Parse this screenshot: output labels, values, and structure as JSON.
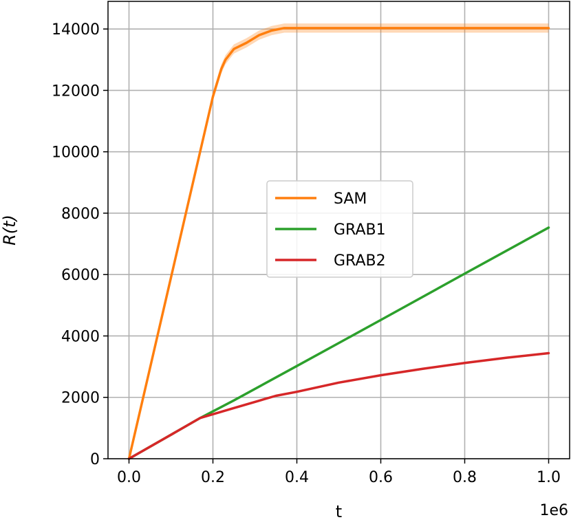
{
  "chart_data": {
    "type": "line",
    "xlabel": "t",
    "ylabel": "R(t)",
    "x_offset_label": "1e6",
    "xlim": [
      -0.05,
      1.05
    ],
    "ylim": [
      0,
      14900
    ],
    "x_ticks": [
      0.0,
      0.2,
      0.4,
      0.6,
      0.8,
      1.0
    ],
    "x_tick_labels": [
      "0.0",
      "0.2",
      "0.4",
      "0.6",
      "0.8",
      "1.0"
    ],
    "y_ticks": [
      0,
      2000,
      4000,
      6000,
      8000,
      10000,
      12000,
      14000
    ],
    "y_tick_labels": [
      "0",
      "2000",
      "4000",
      "6000",
      "8000",
      "10000",
      "12000",
      "14000"
    ],
    "grid": true,
    "legend_position": "center-right",
    "series": [
      {
        "name": "SAM",
        "color": "#ff7f0e",
        "band_half_width": 150,
        "x": [
          0,
          0.05,
          0.1,
          0.15,
          0.2,
          0.22,
          0.23,
          0.25,
          0.28,
          0.31,
          0.34,
          0.37,
          0.4,
          0.5,
          0.6,
          0.7,
          0.8,
          0.9,
          1.0
        ],
        "y": [
          0,
          2950,
          5900,
          8850,
          11800,
          12700,
          13000,
          13350,
          13550,
          13800,
          13950,
          14030,
          14030,
          14030,
          14030,
          14030,
          14030,
          14030,
          14030
        ]
      },
      {
        "name": "GRAB1",
        "color": "#2ca02c",
        "x": [
          0,
          0.1,
          0.17,
          0.25,
          0.4,
          0.6,
          0.8,
          1.0
        ],
        "y": [
          0,
          780,
          1330,
          1900,
          3020,
          4520,
          6030,
          7530
        ]
      },
      {
        "name": "GRAB2",
        "color": "#d62728",
        "x": [
          0,
          0.1,
          0.17,
          0.2,
          0.25,
          0.3,
          0.35,
          0.4,
          0.5,
          0.6,
          0.7,
          0.8,
          0.9,
          1.0
        ],
        "y": [
          0,
          780,
          1330,
          1450,
          1650,
          1850,
          2050,
          2180,
          2480,
          2720,
          2930,
          3120,
          3290,
          3440
        ]
      }
    ]
  }
}
